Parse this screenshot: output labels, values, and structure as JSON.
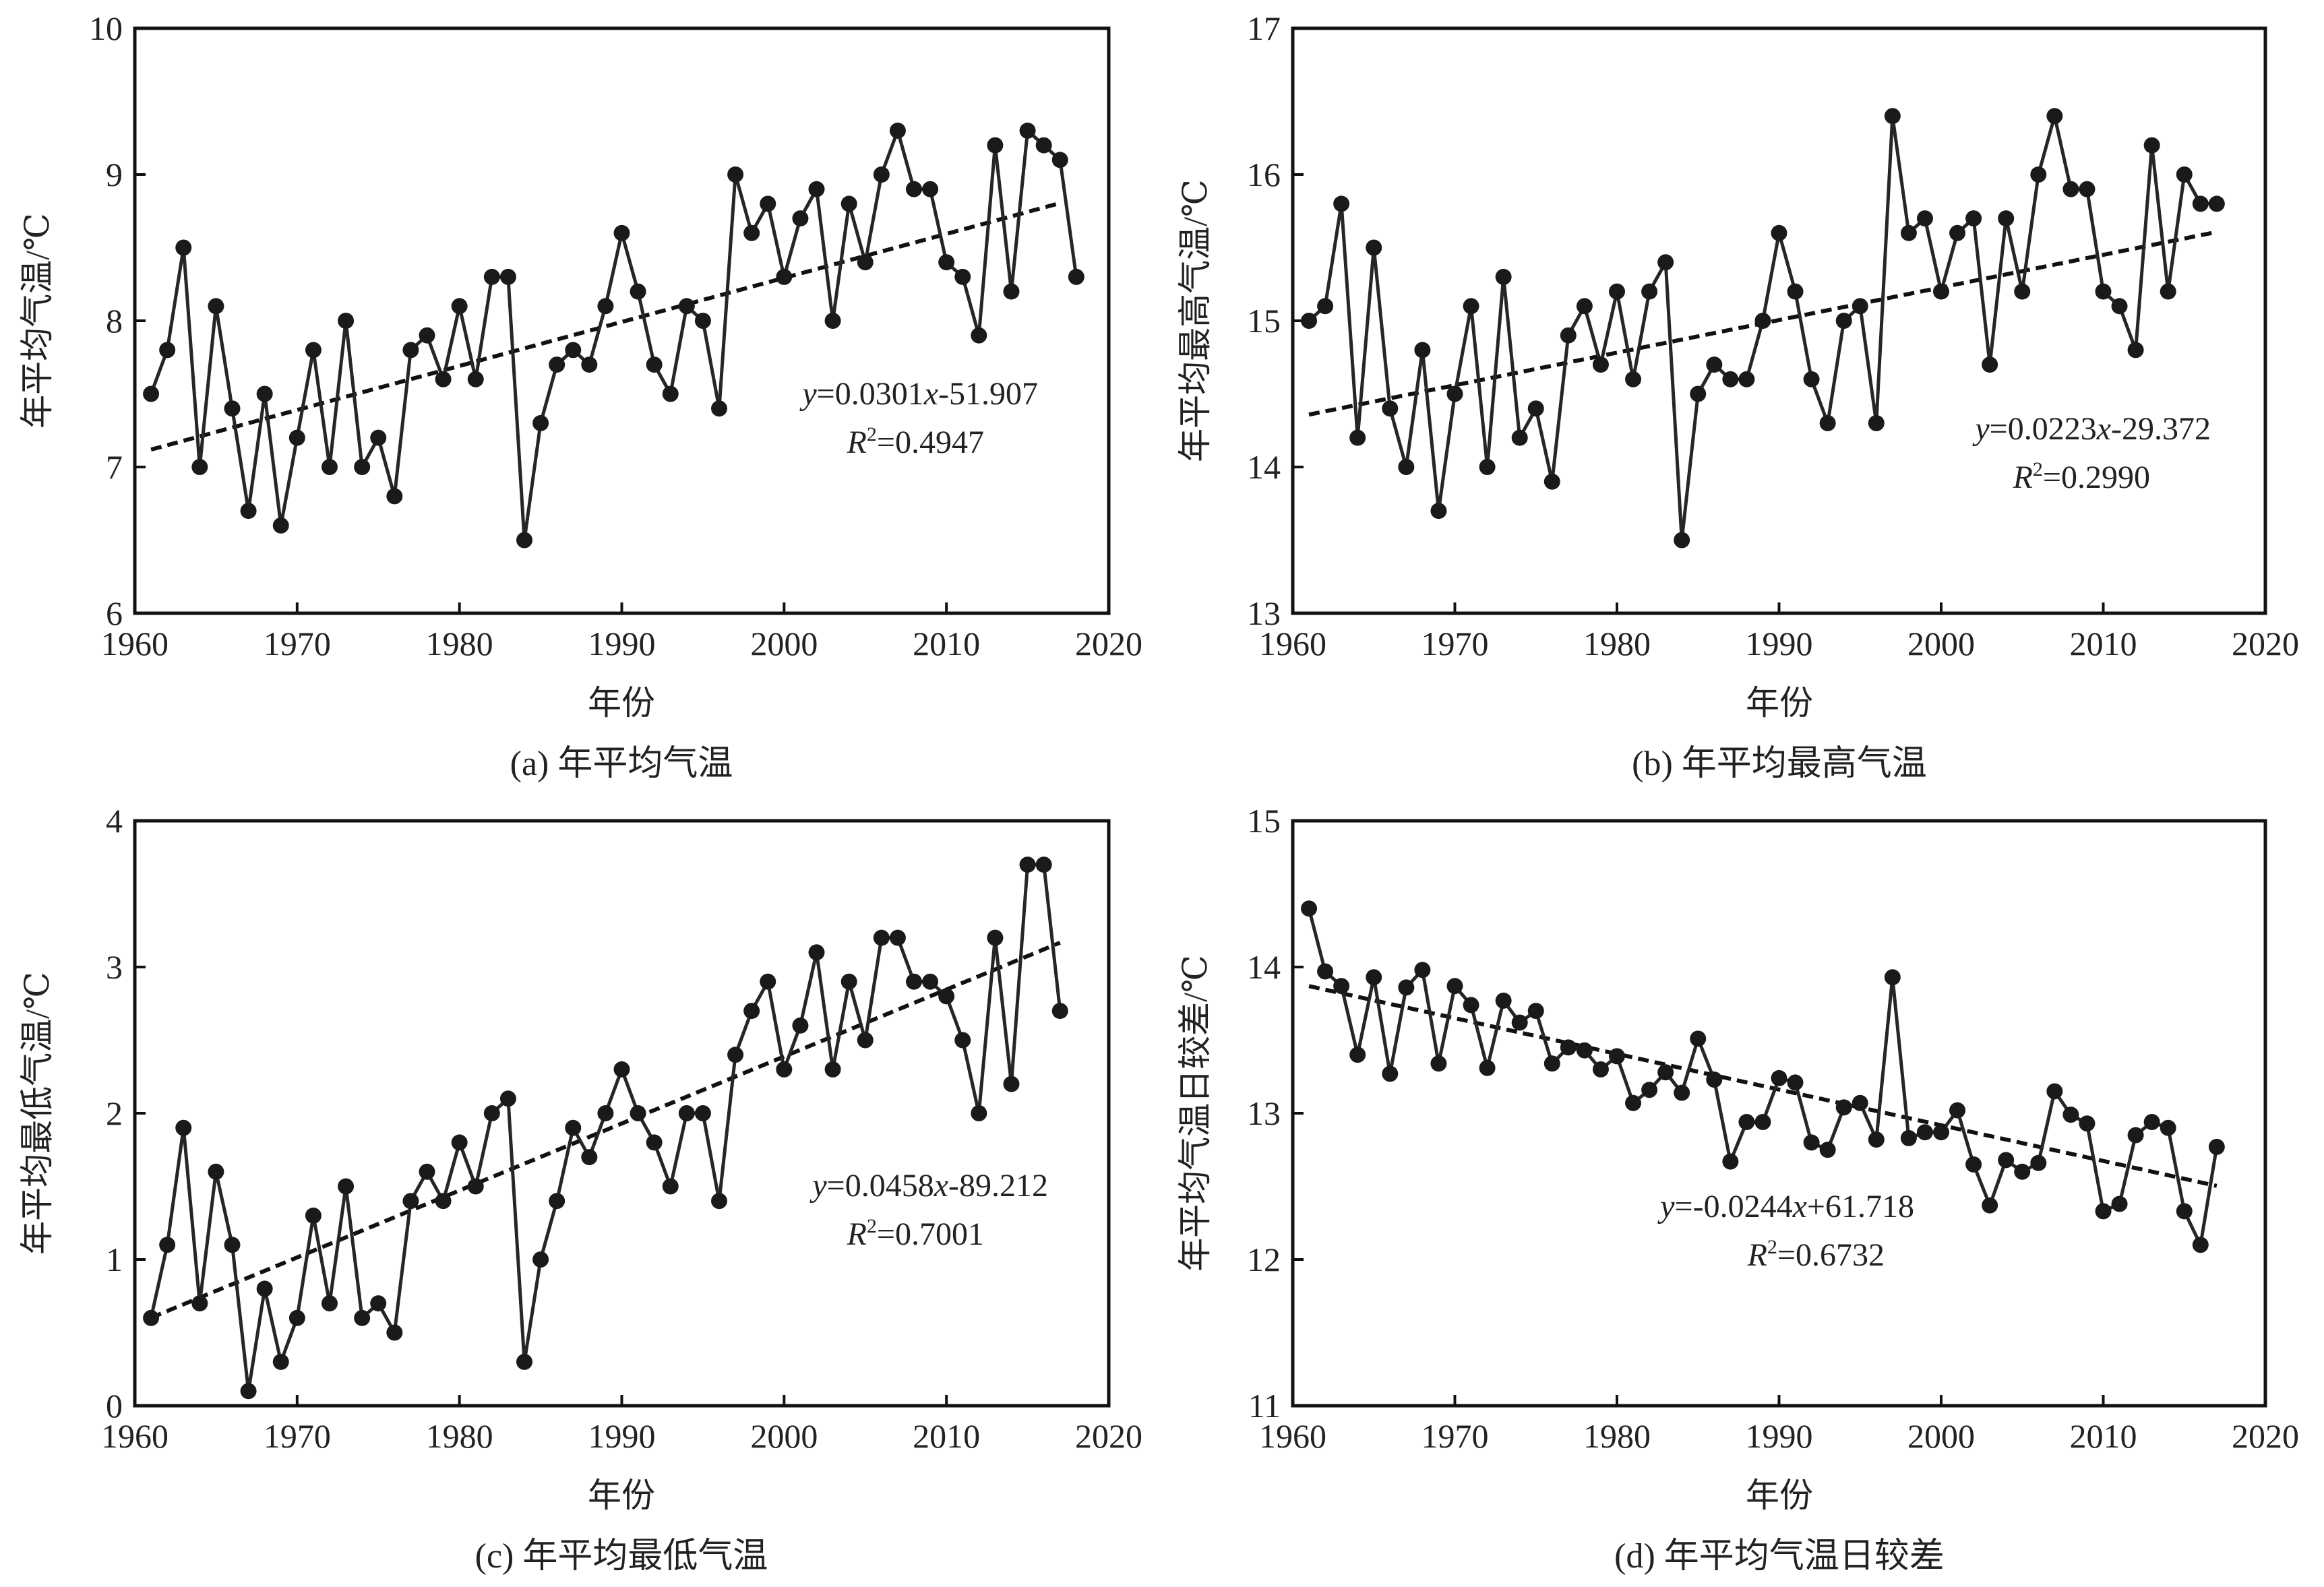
{
  "chart_data": [
    {
      "id": "a",
      "type": "line",
      "caption": "(a) 年平均气温",
      "xlabel": "年份",
      "ylabel": "年平均气温/℃",
      "xlim": [
        1960,
        2020
      ],
      "ylim": [
        6,
        10
      ],
      "xticks": [
        "1960",
        "1970",
        "1980",
        "1990",
        "2000",
        "2010",
        "2020"
      ],
      "yticks": [
        "6",
        "7",
        "8",
        "9",
        "10"
      ],
      "grid": false,
      "x": [
        1961,
        1962,
        1963,
        1964,
        1965,
        1966,
        1967,
        1968,
        1969,
        1970,
        1971,
        1972,
        1973,
        1974,
        1975,
        1976,
        1977,
        1978,
        1979,
        1980,
        1981,
        1982,
        1983,
        1984,
        1985,
        1986,
        1987,
        1988,
        1989,
        1990,
        1991,
        1992,
        1993,
        1994,
        1995,
        1996,
        1997,
        1998,
        1999,
        2000,
        2001,
        2002,
        2003,
        2004,
        2005,
        2006,
        2007,
        2008,
        2009,
        2010,
        2011,
        2012,
        2013,
        2014,
        2015,
        2016,
        2017,
        2018
      ],
      "values": [
        7.5,
        7.8,
        8.5,
        7.0,
        8.1,
        7.4,
        6.7,
        7.5,
        6.6,
        7.2,
        7.8,
        7.0,
        8.0,
        7.0,
        7.2,
        6.8,
        7.8,
        7.9,
        7.6,
        8.1,
        7.6,
        8.3,
        8.3,
        6.5,
        7.3,
        7.7,
        7.8,
        7.7,
        8.1,
        8.6,
        8.2,
        7.7,
        7.5,
        8.1,
        8.0,
        7.4,
        9.0,
        8.6,
        8.8,
        8.3,
        8.7,
        8.9,
        8.0,
        8.8,
        8.4,
        9.0,
        9.3,
        8.9,
        8.9,
        8.4,
        8.3,
        7.9,
        9.2,
        8.2,
        9.3,
        9.2,
        9.1,
        8.3
      ],
      "trend": {
        "slope": 0.0301,
        "intercept": -51.907,
        "x_range": [
          1961,
          2017
        ]
      },
      "equation": {
        "y_part": "y",
        "mid": "=0.0301",
        "x_part": "x",
        "tail": "-51.907"
      },
      "r2": {
        "R": "R",
        "sup": "2",
        "tail": "=0.4947"
      }
    },
    {
      "id": "b",
      "type": "line",
      "caption": "(b) 年平均最高气温",
      "xlabel": "年份",
      "ylabel": "年平均最高气温/℃",
      "xlim": [
        1960,
        2020
      ],
      "ylim": [
        13,
        17
      ],
      "xticks": [
        "1960",
        "1970",
        "1980",
        "1990",
        "2000",
        "2010",
        "2020"
      ],
      "yticks": [
        "13",
        "14",
        "15",
        "16",
        "17"
      ],
      "grid": false,
      "x": [
        1961,
        1962,
        1963,
        1964,
        1965,
        1966,
        1967,
        1968,
        1969,
        1970,
        1971,
        1972,
        1973,
        1974,
        1975,
        1976,
        1977,
        1978,
        1979,
        1980,
        1981,
        1982,
        1983,
        1984,
        1985,
        1986,
        1987,
        1988,
        1989,
        1990,
        1991,
        1992,
        1993,
        1994,
        1995,
        1996,
        1997,
        1998,
        1999,
        2000,
        2001,
        2002,
        2003,
        2004,
        2005,
        2006,
        2007,
        2008,
        2009,
        2010,
        2011,
        2012,
        2013,
        2014,
        2015,
        2016,
        2017
      ],
      "values": [
        15.0,
        15.1,
        15.8,
        14.2,
        15.5,
        14.4,
        14.0,
        14.8,
        13.7,
        14.5,
        15.1,
        14.0,
        15.3,
        14.2,
        14.4,
        13.9,
        14.9,
        15.1,
        14.7,
        15.2,
        14.6,
        15.2,
        15.4,
        13.5,
        14.5,
        14.7,
        14.6,
        14.6,
        15.0,
        15.6,
        15.2,
        14.6,
        14.3,
        15.0,
        15.1,
        14.3,
        16.4,
        15.6,
        15.7,
        15.2,
        15.6,
        15.7,
        14.7,
        15.7,
        15.2,
        16.0,
        16.4,
        15.9,
        15.9,
        15.2,
        15.1,
        14.8,
        16.2,
        15.2,
        16.0,
        15.8,
        15.8
      ],
      "trend": {
        "slope": 0.0223,
        "intercept": -29.372,
        "x_range": [
          1961,
          2017
        ]
      },
      "equation": {
        "y_part": "y",
        "mid": "=0.0223",
        "x_part": "x",
        "tail": "-29.372"
      },
      "r2": {
        "R": "R",
        "sup": "2",
        "tail": "=0.2990"
      }
    },
    {
      "id": "c",
      "type": "line",
      "caption": "(c) 年平均最低气温",
      "xlabel": "年份",
      "ylabel": "年平均最低气温/℃",
      "xlim": [
        1960,
        2020
      ],
      "ylim": [
        0,
        4
      ],
      "xticks": [
        "1960",
        "1970",
        "1980",
        "1990",
        "2000",
        "2010",
        "2020"
      ],
      "yticks": [
        "0",
        "1",
        "2",
        "3",
        "4"
      ],
      "grid": false,
      "x": [
        1961,
        1962,
        1963,
        1964,
        1965,
        1966,
        1967,
        1968,
        1969,
        1970,
        1971,
        1972,
        1973,
        1974,
        1975,
        1976,
        1977,
        1978,
        1979,
        1980,
        1981,
        1982,
        1983,
        1984,
        1985,
        1986,
        1987,
        1988,
        1989,
        1990,
        1991,
        1992,
        1993,
        1994,
        1995,
        1996,
        1997,
        1998,
        1999,
        2000,
        2001,
        2002,
        2003,
        2004,
        2005,
        2006,
        2007,
        2008,
        2009,
        2010,
        2011,
        2012,
        2013,
        2014,
        2015,
        2016,
        2017
      ],
      "values": [
        0.6,
        1.1,
        1.9,
        0.7,
        1.6,
        1.1,
        0.1,
        0.8,
        0.3,
        0.6,
        1.3,
        0.7,
        1.5,
        0.6,
        0.7,
        0.5,
        1.4,
        1.6,
        1.4,
        1.8,
        1.5,
        2.0,
        2.1,
        0.3,
        1.0,
        1.4,
        1.9,
        1.7,
        2.0,
        2.3,
        2.0,
        1.8,
        1.5,
        2.0,
        2.0,
        1.4,
        2.4,
        2.7,
        2.9,
        2.3,
        2.6,
        3.1,
        2.3,
        2.9,
        2.5,
        3.2,
        3.2,
        2.9,
        2.9,
        2.8,
        2.5,
        2.0,
        3.2,
        2.2,
        3.7,
        3.7,
        2.7
      ],
      "trend": {
        "slope": 0.0458,
        "intercept": -89.212,
        "x_range": [
          1961,
          2017
        ]
      },
      "equation": {
        "y_part": "y",
        "mid": "=0.0458",
        "x_part": "x",
        "tail": "-89.212"
      },
      "r2": {
        "R": "R",
        "sup": "2",
        "tail": "=0.7001"
      }
    },
    {
      "id": "d",
      "type": "line",
      "caption": "(d) 年平均气温日较差",
      "xlabel": "年份",
      "ylabel": "年平均气温日较差/℃",
      "xlim": [
        1960,
        2020
      ],
      "ylim": [
        11,
        15
      ],
      "xticks": [
        "1960",
        "1970",
        "1980",
        "1990",
        "2000",
        "2010",
        "2020"
      ],
      "yticks": [
        "11",
        "12",
        "13",
        "14",
        "15"
      ],
      "grid": false,
      "x": [
        1961,
        1962,
        1963,
        1964,
        1965,
        1966,
        1967,
        1968,
        1969,
        1970,
        1971,
        1972,
        1973,
        1974,
        1975,
        1976,
        1977,
        1978,
        1979,
        1980,
        1981,
        1982,
        1983,
        1984,
        1985,
        1986,
        1987,
        1988,
        1989,
        1990,
        1991,
        1992,
        1993,
        1994,
        1995,
        1996,
        1997,
        1998,
        1999,
        2000,
        2001,
        2002,
        2003,
        2004,
        2005,
        2006,
        2007,
        2008,
        2009,
        2010,
        2011,
        2012,
        2013,
        2014,
        2015,
        2016,
        2017
      ],
      "values": [
        14.4,
        13.97,
        13.87,
        13.4,
        13.93,
        13.27,
        13.86,
        13.98,
        13.34,
        13.87,
        13.74,
        13.31,
        13.77,
        13.62,
        13.7,
        13.34,
        13.45,
        13.43,
        13.3,
        13.39,
        13.07,
        13.16,
        13.28,
        13.14,
        13.51,
        13.23,
        12.67,
        12.94,
        12.94,
        13.24,
        13.21,
        12.8,
        12.75,
        13.04,
        13.07,
        12.82,
        13.93,
        12.83,
        12.87,
        12.87,
        13.02,
        12.65,
        12.37,
        12.68,
        12.6,
        12.66,
        13.15,
        12.99,
        12.93,
        12.33,
        12.38,
        12.85,
        12.94,
        12.9,
        12.33,
        12.1,
        12.77
      ],
      "trend": {
        "slope": -0.0244,
        "intercept": 61.718,
        "x_range": [
          1961,
          2017
        ]
      },
      "equation": {
        "y_part": "y",
        "mid": "=-0.0244",
        "x_part": "x",
        "tail": "+61.718"
      },
      "r2": {
        "R": "R",
        "sup": "2",
        "tail": "=0.6732"
      }
    }
  ]
}
